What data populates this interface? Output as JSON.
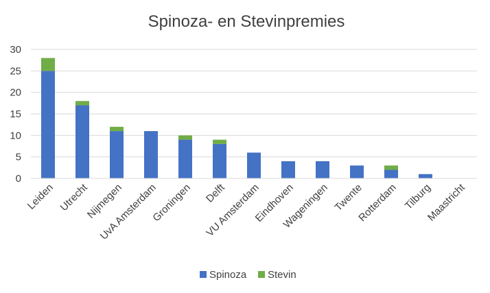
{
  "chart_data": {
    "type": "bar",
    "stacked": true,
    "title": "Spinoza- en Stevinpremies",
    "xlabel": "",
    "ylabel": "",
    "categories": [
      "Leiden",
      "Utrecht",
      "Nijmegen",
      "UvA Amsterdam",
      "Groningen",
      "Delft",
      "VU Amsterdam",
      "Eindhoven",
      "Wageningen",
      "Twente",
      "Rotterdam",
      "Tilburg",
      "Maastricht"
    ],
    "series": [
      {
        "name": "Spinoza",
        "color": "#4472C4",
        "values": [
          25,
          17,
          11,
          11,
          9,
          8,
          6,
          4,
          4,
          3,
          2,
          1,
          0
        ]
      },
      {
        "name": "Stevin",
        "color": "#70AD47",
        "values": [
          3,
          1,
          1,
          0,
          1,
          1,
          0,
          0,
          0,
          0,
          1,
          0,
          0
        ]
      }
    ],
    "ylim": [
      0,
      30
    ],
    "yticks": [
      "0",
      "5",
      "10",
      "15",
      "20",
      "25",
      "30"
    ],
    "grid": true,
    "legend": "bottom"
  }
}
